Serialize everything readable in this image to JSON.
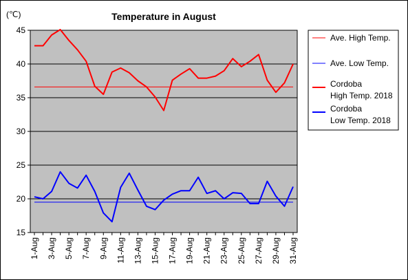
{
  "chart_data": {
    "type": "line",
    "title": "Temperature in August",
    "unit_label": "(℃)",
    "ylim": [
      15,
      45
    ],
    "yticks": [
      15,
      20,
      25,
      30,
      35,
      40,
      45
    ],
    "y_gridlines": [
      20,
      25,
      30,
      35,
      40
    ],
    "plot_background": "#c0c0c0",
    "x": [
      1,
      2,
      3,
      4,
      5,
      6,
      7,
      8,
      9,
      10,
      11,
      12,
      13,
      14,
      15,
      16,
      17,
      18,
      19,
      20,
      21,
      22,
      23,
      24,
      25,
      26,
      27,
      28,
      29,
      30,
      31
    ],
    "x_tick_labels": [
      "1-Aug",
      "3-Aug",
      "5-Aug",
      "7-Aug",
      "9-Aug",
      "11-Aug",
      "13-Aug",
      "15-Aug",
      "17-Aug",
      "19-Aug",
      "21-Aug",
      "23-Aug",
      "25-Aug",
      "27-Aug",
      "29-Aug",
      "31-Aug"
    ],
    "x_tick_days": [
      1,
      3,
      5,
      7,
      9,
      11,
      13,
      15,
      17,
      19,
      21,
      23,
      25,
      27,
      29,
      31
    ],
    "series": [
      {
        "name": "Ave. High Temp.",
        "color": "#ff0000",
        "width": 1,
        "values": [
          36.6,
          36.6,
          36.6,
          36.6,
          36.6,
          36.6,
          36.6,
          36.6,
          36.6,
          36.6,
          36.6,
          36.6,
          36.6,
          36.6,
          36.6,
          36.6,
          36.6,
          36.6,
          36.6,
          36.6,
          36.6,
          36.6,
          36.6,
          36.6,
          36.6,
          36.6,
          36.6,
          36.6,
          36.6,
          36.6,
          36.6
        ]
      },
      {
        "name": "Ave. Low Temp.",
        "color": "#0000ff",
        "width": 1,
        "values": [
          19.5,
          19.5,
          19.5,
          19.5,
          19.5,
          19.5,
          19.5,
          19.5,
          19.5,
          19.5,
          19.5,
          19.5,
          19.5,
          19.5,
          19.5,
          19.5,
          19.5,
          19.5,
          19.5,
          19.5,
          19.5,
          19.5,
          19.5,
          19.5,
          19.5,
          19.5,
          19.5,
          19.5,
          19.5,
          19.5,
          19.5
        ]
      },
      {
        "name": "Cordoba High Temp. 2018",
        "legend_lines": [
          "Cordoba",
          "High Temp. 2018"
        ],
        "color": "#ff0000",
        "width": 2,
        "values": [
          42.7,
          42.7,
          44.3,
          45.1,
          43.5,
          42.1,
          40.4,
          36.7,
          35.5,
          38.8,
          39.4,
          38.7,
          37.5,
          36.6,
          35.1,
          33.1,
          37.6,
          38.5,
          39.3,
          37.9,
          37.9,
          38.2,
          39.0,
          40.8,
          39.6,
          40.4,
          41.4,
          37.6,
          35.8,
          37.2,
          40.0
        ]
      },
      {
        "name": "Cordoba Low Temp. 2018",
        "legend_lines": [
          "Cordoba",
          "Low Temp. 2018"
        ],
        "color": "#0000ff",
        "width": 2,
        "values": [
          20.3,
          20.0,
          21.1,
          24.0,
          22.3,
          21.6,
          23.5,
          21.1,
          17.9,
          16.6,
          21.7,
          23.8,
          21.3,
          18.9,
          18.4,
          19.8,
          20.7,
          21.2,
          21.2,
          23.2,
          20.8,
          21.2,
          20.0,
          20.9,
          20.8,
          19.3,
          19.3,
          22.6,
          20.4,
          18.9,
          21.8
        ]
      }
    ]
  }
}
